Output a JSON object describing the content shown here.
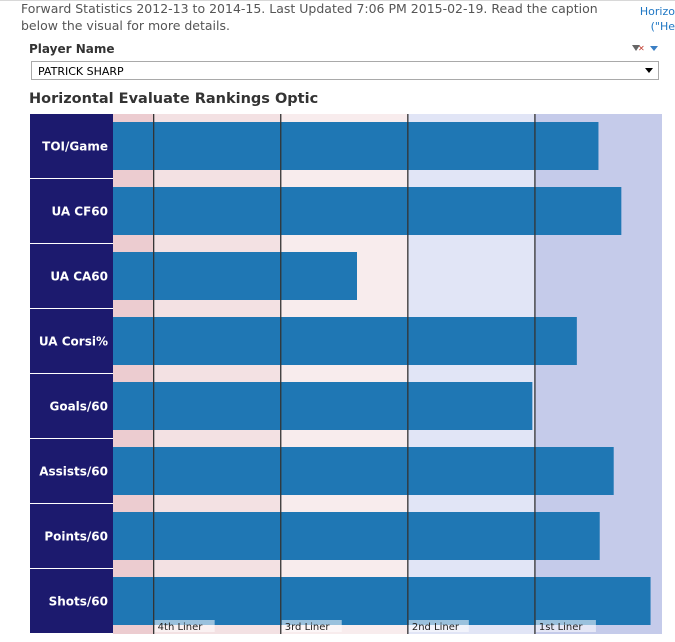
{
  "caption": "Forward Statistics 2012-13 to 2014-15. Last Updated 7:06 PM 2015-02-19. Read the caption below the visual for more details.",
  "side_link": {
    "line1": "Horizo",
    "line2": "(\"He"
  },
  "filter": {
    "label": "Player Name",
    "selected": "PATRICK SHARP"
  },
  "colors": {
    "row_label_bg": "#1c1a6e",
    "bar": "#1f77b4",
    "zone_4th": "#ecccd0",
    "zone_3rd": "#f3e1e3",
    "zone_3rd_light": "#f8eced",
    "zone_2nd": "#e1e5f6",
    "zone_1st": "#c5cbea",
    "line": "#333333"
  },
  "chart_data": {
    "type": "bar",
    "orientation": "horizontal",
    "title": "Horizontal Evaluate Rankings Optic",
    "categories": [
      "TOI/Game",
      "UA CF60",
      "UA CA60",
      "UA Corsi%",
      "Goals/60",
      "Assists/60",
      "Points/60",
      "Shots/60"
    ],
    "values": [
      3.5,
      3.68,
      1.6,
      3.33,
      2.98,
      3.62,
      3.51,
      3.91
    ],
    "xlim": [
      -0.32,
      4.0
    ],
    "zones": [
      {
        "label": "4th Liner",
        "start": 0,
        "end": 1
      },
      {
        "label": "3rd Liner",
        "start": 1,
        "end": 2
      },
      {
        "label": "2nd Liner",
        "start": 2,
        "end": 3
      },
      {
        "label": "1st Liner",
        "start": 3,
        "end": 4
      }
    ],
    "xlabel": "",
    "ylabel": ""
  }
}
